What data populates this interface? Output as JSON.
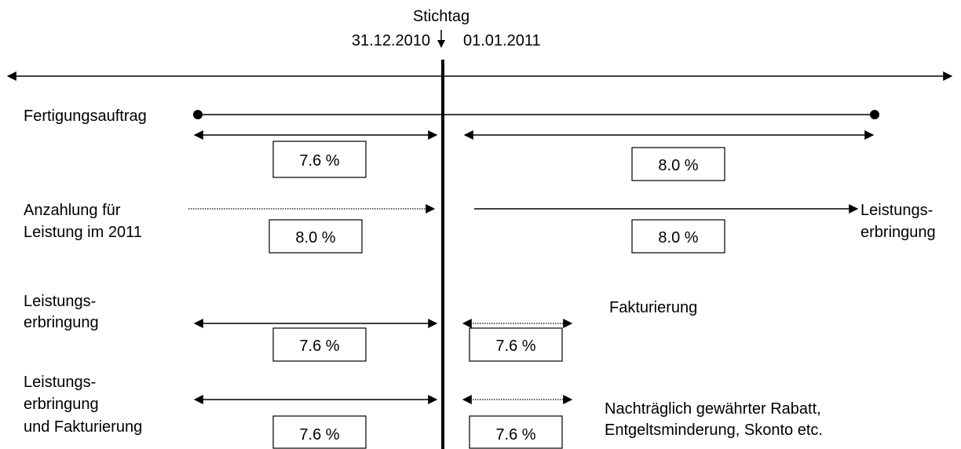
{
  "header": {
    "title": "Stichtag",
    "left_date": "31.12.2010",
    "right_date": "01.01.2011"
  },
  "rows": [
    {
      "label": [
        "Fertigungsauftrag"
      ],
      "left_rate": "7.6 %",
      "right_rate": "8.0 %"
    },
    {
      "label": [
        "Anzahlung für",
        "Leistung im 2011"
      ],
      "left_rate": "8.0 %",
      "right_rate": "8.0 %",
      "right_label": [
        "Leistungs-",
        "erbringung"
      ]
    },
    {
      "label": [
        "Leistungs-",
        "erbringung"
      ],
      "left_rate": "7.6 %",
      "right_rate": "7.6 %",
      "right_label": [
        "Fakturierung"
      ]
    },
    {
      "label": [
        "Leistungs-",
        "erbringung",
        "und Fakturierung"
      ],
      "left_rate": "7.6 %",
      "right_rate": "7.6 %",
      "right_label": [
        "Nachträglich gewährter Rabatt,",
        "Entgeltsminderung, Skonto etc."
      ]
    }
  ]
}
